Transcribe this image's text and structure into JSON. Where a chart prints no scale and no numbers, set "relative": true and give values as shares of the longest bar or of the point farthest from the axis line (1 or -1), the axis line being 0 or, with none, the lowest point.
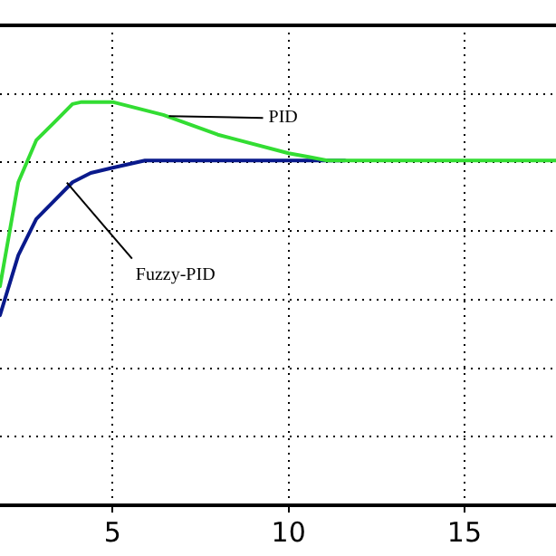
{
  "chart_data": {
    "type": "line",
    "relative": true,
    "grid": true,
    "legend": false,
    "marker": "none",
    "line_style": "solid",
    "xlim": [
      1.8,
      17.6
    ],
    "xticks": [
      5,
      10,
      15
    ],
    "series": [
      {
        "color": "#33dd33",
        "x": [
          1.8,
          2.32,
          2.83,
          3.35,
          3.86,
          4.12,
          5.0,
          6.44,
          7.99,
          10,
          10.57,
          11.1,
          17.6
        ],
        "values": [
          0.543,
          0.801,
          0.905,
          0.95,
          0.995,
          1,
          1,
          0.968,
          0.919,
          0.873,
          0.864,
          0.855,
          0.855
        ]
      },
      {
        "color": "#0a1a8c",
        "x": [
          1.8,
          2.32,
          2.83,
          3.35,
          3.86,
          4.38,
          5.0,
          5.92,
          11.6
        ],
        "values": [
          0.471,
          0.62,
          0.71,
          0.756,
          0.801,
          0.824,
          0.837,
          0.855,
          0.855
        ]
      }
    ],
    "annotations": [
      {
        "text": "PID",
        "x": 6.6,
        "y": 0.965
      },
      {
        "text": "Fuzzy-PID",
        "x": 3.7,
        "y": 0.8
      }
    ]
  }
}
